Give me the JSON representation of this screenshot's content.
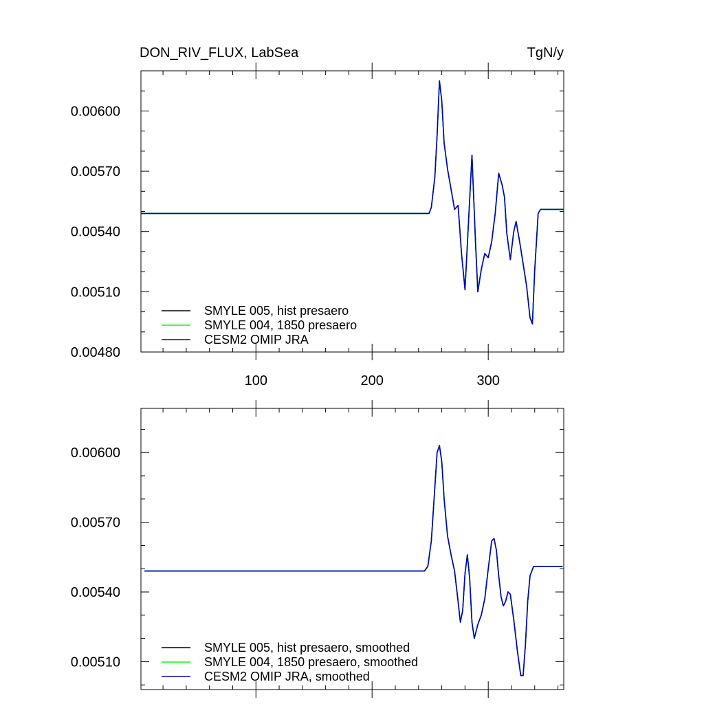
{
  "chart_data": [
    {
      "type": "line",
      "title": "DON_RIV_FLUX, LabSea",
      "units": "TgN/y",
      "xlim": [
        1,
        365
      ],
      "ylim": [
        0.0048,
        0.0062
      ],
      "yticks": [
        "0.00480",
        "0.00510",
        "0.00540",
        "0.00570",
        "0.00600"
      ],
      "xticks": [
        "100",
        "200",
        "300"
      ],
      "grid": false,
      "legend_position": "bottom-left",
      "series": [
        {
          "name": "SMYLE 005, hist presaero",
          "color": "#000000",
          "points": [
            [
              1,
              0.00549
            ],
            [
              249,
              0.00549
            ],
            [
              251,
              0.00552
            ],
            [
              254,
              0.00567
            ],
            [
              256,
              0.00588
            ],
            [
              258,
              0.00615
            ],
            [
              260,
              0.00605
            ],
            [
              262,
              0.00584
            ],
            [
              265,
              0.00571
            ],
            [
              268,
              0.00561
            ],
            [
              271,
              0.00551
            ],
            [
              274,
              0.00553
            ],
            [
              277,
              0.00529
            ],
            [
              280,
              0.00511
            ],
            [
              283,
              0.00545
            ],
            [
              286,
              0.00578
            ],
            [
              289,
              0.00535
            ],
            [
              291,
              0.0051
            ],
            [
              294,
              0.00521
            ],
            [
              297,
              0.00529
            ],
            [
              300,
              0.00527
            ],
            [
              303,
              0.00535
            ],
            [
              306,
              0.00549
            ],
            [
              309,
              0.00569
            ],
            [
              312,
              0.00563
            ],
            [
              314,
              0.00557
            ],
            [
              316,
              0.00539
            ],
            [
              319,
              0.00526
            ],
            [
              322,
              0.0054
            ],
            [
              324,
              0.00545
            ],
            [
              327,
              0.00535
            ],
            [
              330,
              0.00524
            ],
            [
              333,
              0.00513
            ],
            [
              336,
              0.00497
            ],
            [
              338,
              0.00494
            ],
            [
              340,
              0.00521
            ],
            [
              343,
              0.00549
            ],
            [
              345,
              0.00551
            ],
            [
              365,
              0.00551
            ]
          ]
        },
        {
          "name": "SMYLE 004, 1850 presaero",
          "color": "#00ff00",
          "points": [
            [
              1,
              0.00549
            ],
            [
              249,
              0.00549
            ],
            [
              251,
              0.00552
            ],
            [
              254,
              0.00567
            ],
            [
              256,
              0.00588
            ],
            [
              258,
              0.00615
            ],
            [
              260,
              0.00605
            ],
            [
              262,
              0.00584
            ],
            [
              265,
              0.00571
            ],
            [
              268,
              0.00561
            ],
            [
              271,
              0.00551
            ],
            [
              274,
              0.00553
            ],
            [
              277,
              0.00529
            ],
            [
              280,
              0.00511
            ],
            [
              283,
              0.00545
            ],
            [
              286,
              0.00578
            ],
            [
              289,
              0.00535
            ],
            [
              291,
              0.0051
            ],
            [
              294,
              0.00521
            ],
            [
              297,
              0.00529
            ],
            [
              300,
              0.00527
            ],
            [
              303,
              0.00535
            ],
            [
              306,
              0.00549
            ],
            [
              309,
              0.00569
            ],
            [
              312,
              0.00563
            ],
            [
              314,
              0.00557
            ],
            [
              316,
              0.00539
            ],
            [
              319,
              0.00526
            ],
            [
              322,
              0.0054
            ],
            [
              324,
              0.00545
            ],
            [
              327,
              0.00535
            ],
            [
              330,
              0.00524
            ],
            [
              333,
              0.00513
            ],
            [
              336,
              0.00497
            ],
            [
              338,
              0.00494
            ],
            [
              340,
              0.00521
            ],
            [
              343,
              0.00549
            ],
            [
              345,
              0.00551
            ],
            [
              365,
              0.00551
            ]
          ]
        },
        {
          "name": "CESM2 OMIP JRA",
          "color": "#0000cc",
          "points": [
            [
              1,
              0.00549
            ],
            [
              249,
              0.00549
            ],
            [
              251,
              0.00552
            ],
            [
              254,
              0.00567
            ],
            [
              256,
              0.00588
            ],
            [
              258,
              0.00615
            ],
            [
              260,
              0.00605
            ],
            [
              262,
              0.00584
            ],
            [
              265,
              0.00571
            ],
            [
              268,
              0.00561
            ],
            [
              271,
              0.00551
            ],
            [
              274,
              0.00553
            ],
            [
              277,
              0.00529
            ],
            [
              280,
              0.00511
            ],
            [
              283,
              0.00545
            ],
            [
              286,
              0.00578
            ],
            [
              289,
              0.00535
            ],
            [
              291,
              0.0051
            ],
            [
              294,
              0.00521
            ],
            [
              297,
              0.00529
            ],
            [
              300,
              0.00527
            ],
            [
              303,
              0.00535
            ],
            [
              306,
              0.00549
            ],
            [
              309,
              0.00569
            ],
            [
              312,
              0.00563
            ],
            [
              314,
              0.00557
            ],
            [
              316,
              0.00539
            ],
            [
              319,
              0.00526
            ],
            [
              322,
              0.0054
            ],
            [
              324,
              0.00545
            ],
            [
              327,
              0.00535
            ],
            [
              330,
              0.00524
            ],
            [
              333,
              0.00513
            ],
            [
              336,
              0.00497
            ],
            [
              338,
              0.00494
            ],
            [
              340,
              0.00521
            ],
            [
              343,
              0.00549
            ],
            [
              345,
              0.00551
            ],
            [
              365,
              0.00551
            ]
          ]
        }
      ]
    },
    {
      "type": "line",
      "title": "",
      "xlim": [
        1,
        365
      ],
      "ylim": [
        0.00498,
        0.00619
      ],
      "yticks": [
        "0.00510",
        "0.00540",
        "0.00570",
        "0.00600"
      ],
      "xticks": [],
      "grid": false,
      "legend_position": "bottom-left",
      "series": [
        {
          "name": "SMYLE 005, hist presaero, smoothed",
          "color": "#000000",
          "points": [
            [
              4,
              0.00549
            ],
            [
              245,
              0.00549
            ],
            [
              248,
              0.00551
            ],
            [
              251,
              0.00562
            ],
            [
              254,
              0.00585
            ],
            [
              256,
              0.006
            ],
            [
              258,
              0.00603
            ],
            [
              260,
              0.00596
            ],
            [
              262,
              0.0058
            ],
            [
              265,
              0.00564
            ],
            [
              268,
              0.00556
            ],
            [
              271,
              0.00549
            ],
            [
              274,
              0.00536
            ],
            [
              276,
              0.00527
            ],
            [
              278,
              0.00532
            ],
            [
              280,
              0.00548
            ],
            [
              282,
              0.00556
            ],
            [
              284,
              0.00546
            ],
            [
              286,
              0.00527
            ],
            [
              288,
              0.0052
            ],
            [
              291,
              0.00526
            ],
            [
              294,
              0.0053
            ],
            [
              297,
              0.00537
            ],
            [
              300,
              0.0055
            ],
            [
              303,
              0.00562
            ],
            [
              305,
              0.00563
            ],
            [
              307,
              0.00558
            ],
            [
              309,
              0.00547
            ],
            [
              311,
              0.00538
            ],
            [
              313,
              0.00534
            ],
            [
              315,
              0.00536
            ],
            [
              317,
              0.0054
            ],
            [
              319,
              0.00539
            ],
            [
              322,
              0.00528
            ],
            [
              325,
              0.00515
            ],
            [
              328,
              0.00504
            ],
            [
              330,
              0.00504
            ],
            [
              332,
              0.00517
            ],
            [
              334,
              0.00536
            ],
            [
              336,
              0.00547
            ],
            [
              339,
              0.00551
            ],
            [
              364,
              0.00551
            ]
          ]
        },
        {
          "name": "SMYLE 004, 1850 presaero, smoothed",
          "color": "#00ff00",
          "points": [
            [
              4,
              0.00549
            ],
            [
              245,
              0.00549
            ],
            [
              248,
              0.00551
            ],
            [
              251,
              0.00562
            ],
            [
              254,
              0.00585
            ],
            [
              256,
              0.006
            ],
            [
              258,
              0.00603
            ],
            [
              260,
              0.00596
            ],
            [
              262,
              0.0058
            ],
            [
              265,
              0.00564
            ],
            [
              268,
              0.00556
            ],
            [
              271,
              0.00549
            ],
            [
              274,
              0.00536
            ],
            [
              276,
              0.00527
            ],
            [
              278,
              0.00532
            ],
            [
              280,
              0.00548
            ],
            [
              282,
              0.00556
            ],
            [
              284,
              0.00546
            ],
            [
              286,
              0.00527
            ],
            [
              288,
              0.0052
            ],
            [
              291,
              0.00526
            ],
            [
              294,
              0.0053
            ],
            [
              297,
              0.00537
            ],
            [
              300,
              0.0055
            ],
            [
              303,
              0.00562
            ],
            [
              305,
              0.00563
            ],
            [
              307,
              0.00558
            ],
            [
              309,
              0.00547
            ],
            [
              311,
              0.00538
            ],
            [
              313,
              0.00534
            ],
            [
              315,
              0.00536
            ],
            [
              317,
              0.0054
            ],
            [
              319,
              0.00539
            ],
            [
              322,
              0.00528
            ],
            [
              325,
              0.00515
            ],
            [
              328,
              0.00504
            ],
            [
              330,
              0.00504
            ],
            [
              332,
              0.00517
            ],
            [
              334,
              0.00536
            ],
            [
              336,
              0.00547
            ],
            [
              339,
              0.00551
            ],
            [
              364,
              0.00551
            ]
          ]
        },
        {
          "name": "CESM2 OMIP JRA, smoothed",
          "color": "#0000cc",
          "points": [
            [
              4,
              0.00549
            ],
            [
              245,
              0.00549
            ],
            [
              248,
              0.00551
            ],
            [
              251,
              0.00562
            ],
            [
              254,
              0.00585
            ],
            [
              256,
              0.006
            ],
            [
              258,
              0.00603
            ],
            [
              260,
              0.00596
            ],
            [
              262,
              0.0058
            ],
            [
              265,
              0.00564
            ],
            [
              268,
              0.00556
            ],
            [
              271,
              0.00549
            ],
            [
              274,
              0.00536
            ],
            [
              276,
              0.00527
            ],
            [
              278,
              0.00532
            ],
            [
              280,
              0.00548
            ],
            [
              282,
              0.00556
            ],
            [
              284,
              0.00546
            ],
            [
              286,
              0.00527
            ],
            [
              288,
              0.0052
            ],
            [
              291,
              0.00526
            ],
            [
              294,
              0.0053
            ],
            [
              297,
              0.00537
            ],
            [
              300,
              0.0055
            ],
            [
              303,
              0.00562
            ],
            [
              305,
              0.00563
            ],
            [
              307,
              0.00558
            ],
            [
              309,
              0.00547
            ],
            [
              311,
              0.00538
            ],
            [
              313,
              0.00534
            ],
            [
              315,
              0.00536
            ],
            [
              317,
              0.0054
            ],
            [
              319,
              0.00539
            ],
            [
              322,
              0.00528
            ],
            [
              325,
              0.00515
            ],
            [
              328,
              0.00504
            ],
            [
              330,
              0.00504
            ],
            [
              332,
              0.00517
            ],
            [
              334,
              0.00536
            ],
            [
              336,
              0.00547
            ],
            [
              339,
              0.00551
            ],
            [
              364,
              0.00551
            ]
          ]
        }
      ]
    }
  ]
}
